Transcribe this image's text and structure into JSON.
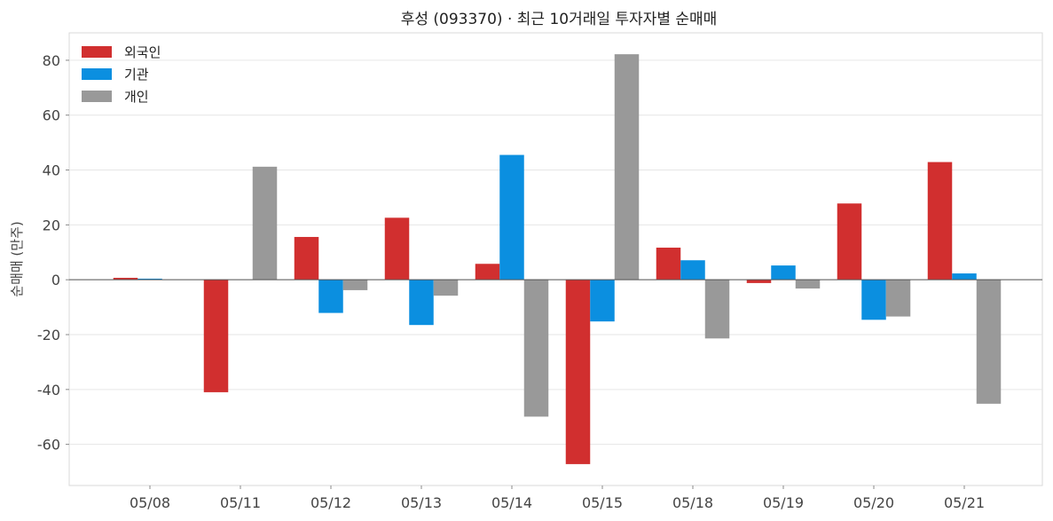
{
  "chart_data": {
    "type": "bar",
    "title": "후성 (093370) · 최근 10거래일 투자자별 순매매",
    "xlabel": "",
    "ylabel": "순매매 (만주)",
    "ylim": [
      -75,
      90
    ],
    "yticks": [
      -60,
      -40,
      -20,
      0,
      20,
      40,
      60,
      80
    ],
    "grid": true,
    "legend_position": "top-left",
    "categories": [
      "05/08",
      "05/11",
      "05/12",
      "05/13",
      "05/14",
      "05/15",
      "05/18",
      "05/19",
      "05/20",
      "05/21"
    ],
    "series": [
      {
        "name": "외국인",
        "color": "#d12f2f",
        "values": [
          0.7,
          -41,
          15.6,
          22.6,
          5.8,
          -67.2,
          11.7,
          -1.2,
          27.8,
          42.9
        ]
      },
      {
        "name": "기관",
        "color": "#0b8fe0",
        "values": [
          0.4,
          0,
          -12.1,
          -16.5,
          45.5,
          -15.2,
          7.1,
          5.2,
          -14.6,
          2.3
        ]
      },
      {
        "name": "개인",
        "color": "#999999",
        "values": [
          0,
          41.2,
          -3.8,
          -5.8,
          -49.9,
          82.2,
          -21.4,
          -3.2,
          -13.4,
          -45.2
        ]
      }
    ]
  }
}
